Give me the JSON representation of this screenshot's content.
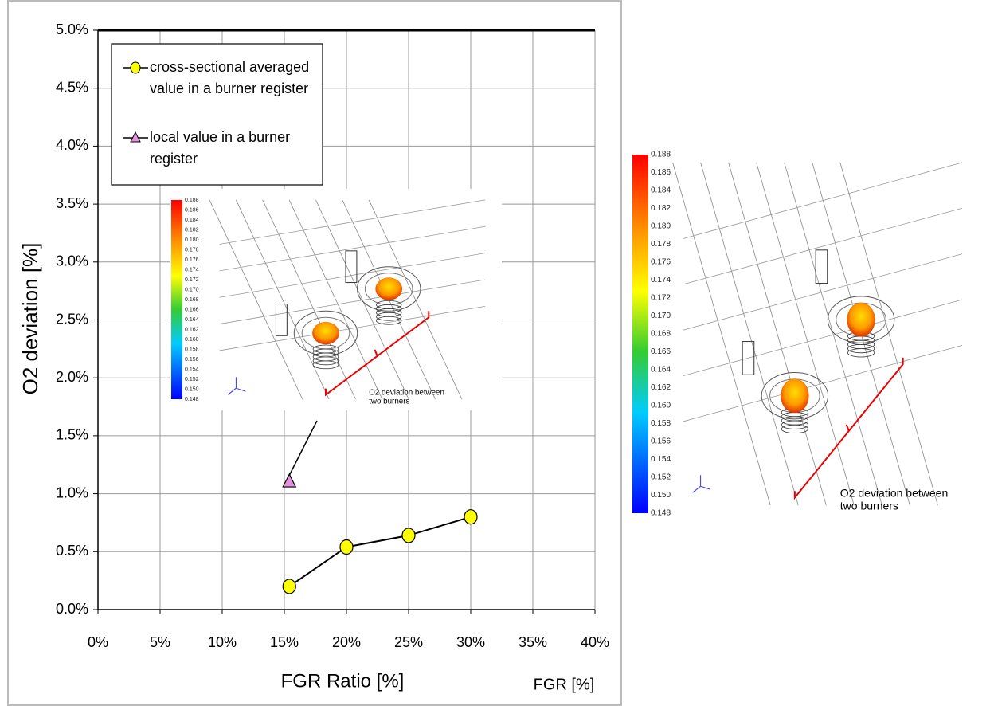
{
  "chart_data": {
    "type": "line",
    "x_label": "FGR Ratio  [%]",
    "y_label": "O2 deviation  [%]",
    "footer_label": "FGR [%]",
    "xlim": [
      0,
      40
    ],
    "ylim": [
      0,
      5
    ],
    "xticks": [
      {
        "value": 0,
        "label": "0%"
      },
      {
        "value": 5,
        "label": "5%"
      },
      {
        "value": 10,
        "label": "10%"
      },
      {
        "value": 15,
        "label": "15%"
      },
      {
        "value": 20,
        "label": "20%"
      },
      {
        "value": 25,
        "label": "25%"
      },
      {
        "value": 30,
        "label": "30%"
      },
      {
        "value": 35,
        "label": "35%"
      },
      {
        "value": 40,
        "label": "40%"
      }
    ],
    "yticks": [
      {
        "value": 0,
        "label": "0.0%"
      },
      {
        "value": 0.5,
        "label": "0.5%"
      },
      {
        "value": 1,
        "label": "1.0%"
      },
      {
        "value": 1.5,
        "label": "1.5%"
      },
      {
        "value": 2,
        "label": "2.0%"
      },
      {
        "value": 2.5,
        "label": "2.5%"
      },
      {
        "value": 3,
        "label": "3.0%"
      },
      {
        "value": 3.5,
        "label": "3.5%"
      },
      {
        "value": 4,
        "label": "4.0%"
      },
      {
        "value": 4.5,
        "label": "4.5%"
      },
      {
        "value": 5,
        "label": "5.0%"
      }
    ],
    "grid": true,
    "legend": "top-left",
    "series": [
      {
        "name": [
          "cross-sectional averaged",
          "value in a burner register"
        ],
        "color": "#ffff00",
        "marker": "circle",
        "connected": true,
        "x": [
          15.4,
          20,
          25,
          30
        ],
        "values": [
          0.2,
          0.54,
          0.64,
          0.8
        ]
      },
      {
        "name": [
          "local value in a burner",
          "register"
        ],
        "color": "#e890e0",
        "marker": "triangle",
        "connected": false,
        "x": [
          15.4
        ],
        "values": [
          1.1
        ]
      }
    ],
    "inset_annotation": [
      "O2 deviation between",
      "two burners"
    ],
    "colorbar_ticks": [
      0.188,
      0.186,
      0.184,
      0.182,
      {
        "value": 0.18,
        "label": "0.180"
      },
      0.178,
      0.176,
      0.174,
      0.172,
      {
        "value": 0.17,
        "label": "0.170"
      },
      0.168,
      0.166,
      0.164,
      0.162,
      {
        "value": 0.16,
        "label": "0.160"
      },
      0.158,
      0.156,
      0.154,
      0.152,
      {
        "value": 0.15,
        "label": "0.150"
      },
      0.148
    ]
  }
}
